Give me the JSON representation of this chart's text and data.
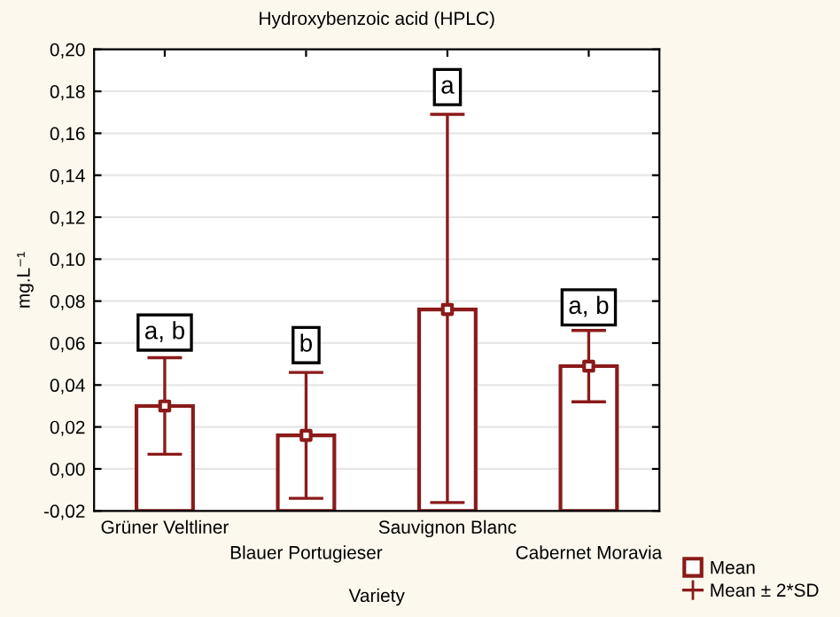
{
  "chart_data": {
    "type": "bar",
    "title": "Hydroxybenzoic acid (HPLC)",
    "xlabel": "Variety",
    "ylabel": "mg.L⁻¹",
    "categories": [
      "Grüner Veltliner",
      "Blauer Portugieser",
      "Sauvignon Blanc",
      "Cabernet Moravia"
    ],
    "series": [
      {
        "color": "#8b1a1a",
        "values": [
          0.05,
          0.036,
          0.096,
          0.069
        ],
        "base": [
          -0.02,
          -0.02,
          -0.02,
          -0.02
        ]
      },
      {
        "name": "Mean",
        "type": "scatter",
        "color": "#8b1a1a",
        "values": [
          0.03,
          0.016,
          0.076,
          0.049
        ],
        "errors": [
          [
            0.007,
            0.053
          ],
          [
            -0.014,
            0.046
          ],
          [
            -0.016,
            0.169
          ],
          [
            0.032,
            0.066
          ]
        ]
      }
    ],
    "marker": "square",
    "ylim": [
      -0.02,
      0.2
    ],
    "yticks": [
      {
        "value": -0.02,
        "label": "-0,02"
      },
      {
        "value": 0.0,
        "label": "0,00"
      },
      {
        "value": 0.02,
        "label": "0,02"
      },
      {
        "value": 0.04,
        "label": "0,04"
      },
      {
        "value": 0.06,
        "label": "0,06"
      },
      {
        "value": 0.08,
        "label": "0,08"
      },
      {
        "value": 0.1,
        "label": "0,10"
      },
      {
        "value": 0.12,
        "label": "0,12"
      },
      {
        "value": 0.14,
        "label": "0,14"
      },
      {
        "value": 0.16,
        "label": "0,16"
      },
      {
        "value": 0.18,
        "label": "0,18"
      },
      {
        "value": 0.2,
        "label": "0,20"
      }
    ],
    "grid": "y",
    "legend": "bottom right",
    "annotations": [
      {
        "text": "a, b",
        "x": "Grüner Veltliner",
        "y": 0.065
      },
      {
        "text": "b",
        "x": "Blauer Portugieser",
        "y": 0.059
      },
      {
        "text": "a",
        "x": "Sauvignon Blanc",
        "y": 0.182
      },
      {
        "text": "a, b",
        "x": "Cabernet Moravia",
        "y": 0.077
      },
      "Mean ± 2*SD"
    ]
  }
}
